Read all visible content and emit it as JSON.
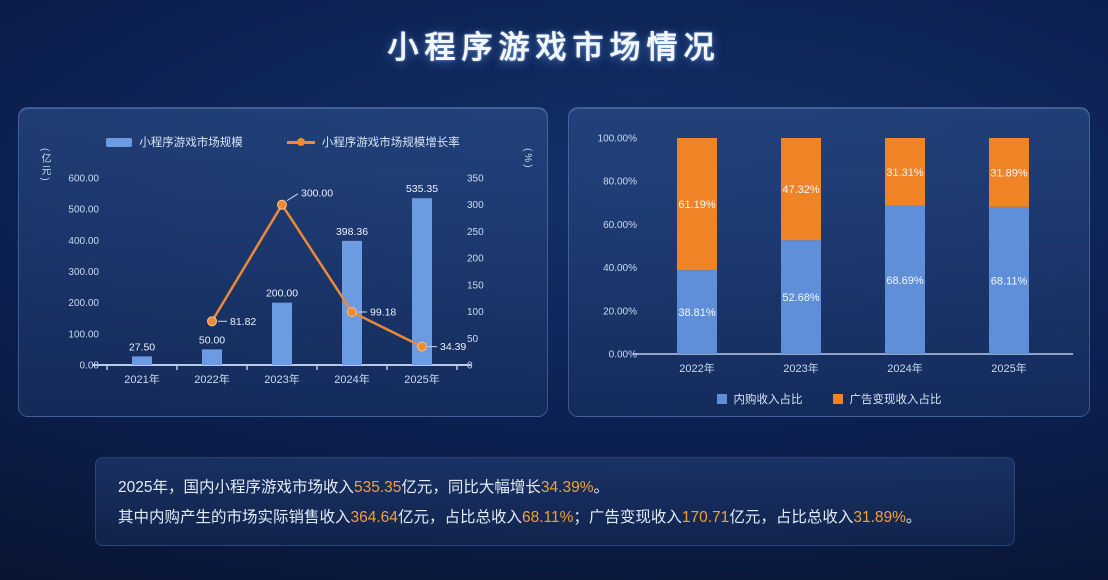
{
  "page": {
    "title": "小程序游戏市场情况"
  },
  "chart_data": [
    {
      "type": "bar",
      "subtype": "combo-bar-line",
      "title": "",
      "categories": [
        "2021年",
        "2022年",
        "2023年",
        "2024年",
        "2025年"
      ],
      "series": [
        {
          "name": "小程序游戏市场规模",
          "kind": "bar",
          "axis": "left",
          "values": [
            27.5,
            50.0,
            200.0,
            398.36,
            535.35
          ],
          "color": "#6b9be0"
        },
        {
          "name": "小程序游戏市场规模增长率",
          "kind": "line",
          "axis": "right",
          "values": [
            null,
            81.82,
            300.0,
            99.18,
            34.39
          ],
          "color": "#ee8a35"
        }
      ],
      "left_axis": {
        "unit": "(亿元)",
        "min": 0,
        "max": 600,
        "step": 100,
        "decimals": 2,
        "suffix": ""
      },
      "right_axis": {
        "unit": "(%)",
        "min": 0,
        "max": 350,
        "step": 50,
        "decimals": 0,
        "suffix": ""
      },
      "legend_position": "top",
      "grid": false
    },
    {
      "type": "bar",
      "subtype": "stacked-percent",
      "title": "",
      "categories": [
        "2022年",
        "2023年",
        "2024年",
        "2025年"
      ],
      "series": [
        {
          "name": "内购收入占比",
          "values": [
            38.81,
            52.68,
            68.69,
            68.11
          ],
          "color": "#5e8fd8"
        },
        {
          "name": "广告变现收入占比",
          "values": [
            61.19,
            47.32,
            31.31,
            31.89
          ],
          "color": "#f08326"
        }
      ],
      "y_axis": {
        "min": 0,
        "max": 100,
        "step": 20,
        "decimals": 2,
        "suffix": "%"
      },
      "legend_position": "bottom",
      "grid": false
    }
  ],
  "footer": {
    "lines": [
      [
        {
          "t": "2025年，国内小程序游戏市场收入"
        },
        {
          "t": "535.35",
          "hl": true
        },
        {
          "t": "亿元，同比大幅增长"
        },
        {
          "t": "34.39%",
          "hl": true
        },
        {
          "t": "。"
        }
      ],
      [
        {
          "t": "其中内购产生的市场实际销售收入"
        },
        {
          "t": "364.64",
          "hl": true
        },
        {
          "t": "亿元，占比总收入"
        },
        {
          "t": "68.11%",
          "hl": true
        },
        {
          "t": "；广告变现收入"
        },
        {
          "t": "170.71",
          "hl": true
        },
        {
          "t": "亿元，占比总收入"
        },
        {
          "t": "31.89%",
          "hl": true
        },
        {
          "t": "。"
        }
      ]
    ]
  },
  "colors": {
    "bar_blue": "#6b9be0",
    "line_orange": "#ee8a35",
    "stacked_blue": "#5e8fd8",
    "stacked_orange": "#f08326",
    "highlight": "#f6a030",
    "axis_text": "#c9daf2"
  }
}
